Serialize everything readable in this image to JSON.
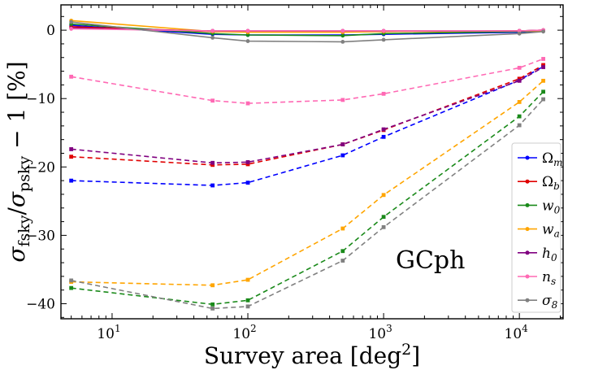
{
  "chart_data": {
    "type": "line",
    "xscale": "log",
    "xlabel": "Survey area [deg²]",
    "ylabel": "σfsky/σpsky − 1 [%]",
    "xlim": [
      4.2,
      21000
    ],
    "ylim": [
      -42.2,
      3.7
    ],
    "yticks": [
      0,
      -10,
      -20,
      -30,
      -40
    ],
    "ytick_labels": [
      "0",
      "−10",
      "−20",
      "−30",
      "−40"
    ],
    "xticks": [
      10,
      100,
      1000,
      10000
    ],
    "xtick_labels": [
      {
        "base": "10",
        "exp": "1"
      },
      {
        "base": "10",
        "exp": "2"
      },
      {
        "base": "10",
        "exp": "3"
      },
      {
        "base": "10",
        "exp": "4"
      }
    ],
    "annotation": "GCph",
    "x": [
      5,
      55,
      100,
      500,
      1000,
      10000,
      15000
    ],
    "legend_position": "lower-right",
    "series": [
      {
        "name": "Ωm",
        "legend_main": "Ω",
        "legend_sub": "m",
        "color": "#0000ff",
        "solid": [
          0.7,
          -0.6,
          -0.7,
          -0.7,
          -0.6,
          -0.3,
          -0.1
        ],
        "dashed": [
          -22.0,
          -22.7,
          -22.3,
          -18.3,
          -15.6,
          -7.3,
          -5.3
        ]
      },
      {
        "name": "Ωb",
        "legend_main": "Ω",
        "legend_sub": "b",
        "color": "#e00000",
        "solid": [
          0.5,
          -0.2,
          -0.2,
          -0.2,
          -0.2,
          -0.1,
          0.0
        ],
        "dashed": [
          -18.5,
          -19.7,
          -19.6,
          -16.7,
          -14.6,
          -7.1,
          -5.1
        ]
      },
      {
        "name": "w0",
        "legend_main": "w",
        "legend_sub": "0",
        "color": "#1a8a1a",
        "solid": [
          0.9,
          -0.5,
          -0.7,
          -0.8,
          -0.5,
          -0.2,
          -0.1
        ],
        "dashed": [
          -37.7,
          -40.1,
          -39.5,
          -32.3,
          -27.3,
          -12.6,
          -9.0
        ]
      },
      {
        "name": "wa",
        "legend_main": "w",
        "legend_sub": "a",
        "color": "#ffa500",
        "solid": [
          1.4,
          -0.2,
          -0.3,
          -0.3,
          -0.2,
          -0.1,
          -0.1
        ],
        "dashed": [
          -36.8,
          -37.3,
          -36.5,
          -29.0,
          -24.1,
          -10.5,
          -7.4
        ]
      },
      {
        "name": "h0",
        "legend_main": "h",
        "legend_sub": "0",
        "color": "#800080",
        "solid": [
          0.3,
          -0.1,
          -0.1,
          -0.1,
          -0.1,
          -0.1,
          0.0
        ],
        "dashed": [
          -17.4,
          -19.4,
          -19.3,
          -16.7,
          -14.5,
          -7.4,
          -5.4
        ]
      },
      {
        "name": "ns",
        "legend_main": "n",
        "legend_sub": "s",
        "color": "#ff69b4",
        "solid": [
          0.2,
          -0.1,
          -0.1,
          -0.1,
          -0.1,
          -0.1,
          0.0
        ],
        "dashed": [
          -6.8,
          -10.3,
          -10.7,
          -10.2,
          -9.3,
          -5.5,
          -4.2
        ]
      },
      {
        "name": "σ8",
        "legend_main": "σ",
        "legend_sub": "8",
        "color": "#808080",
        "solid": [
          1.2,
          -1.1,
          -1.6,
          -1.7,
          -1.4,
          -0.5,
          -0.2
        ],
        "dashed": [
          -36.6,
          -40.7,
          -40.4,
          -33.7,
          -28.8,
          -13.9,
          -10.1
        ]
      }
    ]
  }
}
